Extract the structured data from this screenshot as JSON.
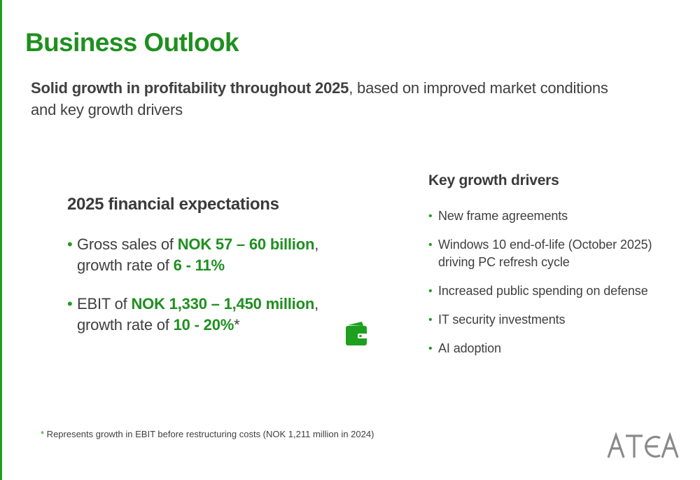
{
  "title": "Business Outlook",
  "subtitle": {
    "bold": "Solid growth in profitability throughout 2025",
    "rest": ", based on improved market conditions and key growth drivers"
  },
  "financial": {
    "heading": "2025 financial expectations",
    "items": [
      {
        "prefix": "Gross sales of ",
        "range": "NOK 57 – 60 billion",
        "comma": ",",
        "growth_prefix": "growth rate of ",
        "growth": "6 - 11%",
        "suffix": ""
      },
      {
        "prefix": "EBIT of ",
        "range": "NOK 1,330 – 1,450 million",
        "comma": ",",
        "growth_prefix": "growth rate of ",
        "growth": "10 - 20%",
        "suffix": "*"
      }
    ]
  },
  "drivers": {
    "heading": "Key growth drivers",
    "items": [
      "New frame agreements",
      "Windows 10 end-of-life (October 2025) driving PC refresh cycle",
      "Increased public spending on defense",
      "IT security investments",
      "AI adoption"
    ]
  },
  "footnote": {
    "star": "*",
    "text": " Represents growth in EBIT before restructuring costs (NOK 1,211 million in 2024)"
  },
  "bullet": "•",
  "icons": {
    "wallet": "wallet-icon"
  },
  "logo": {
    "text": "ATEA"
  },
  "colors": {
    "accent": "#1f8f1f",
    "text": "#404040",
    "logo": "#8a8a8a"
  }
}
